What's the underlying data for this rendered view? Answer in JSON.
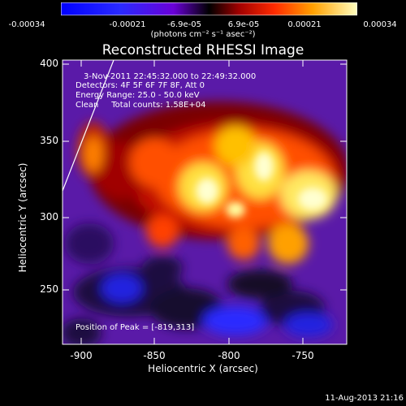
{
  "colorbar": {
    "ticks": [
      "-0.00034",
      "-0.00021",
      "-6.9e-05",
      "6.9e-05",
      "0.00021",
      "0.00034"
    ],
    "unit": "(photons cm⁻² s⁻¹ asec⁻²)"
  },
  "title": "Reconstructed RHESSI Image",
  "info": {
    "line1": "3-Nov-2011 22:45:32.000 to 22:49:32.000",
    "line2": "Detectors: 4F 5F 6F 7F 8F, Att 0",
    "line3": "Energy Range: 25.0 - 50.0 keV",
    "line4": "Clean     Total counts: 1.58E+04",
    "peak": "Position of Peak = [-819,313]"
  },
  "axes": {
    "xlabel": "Heliocentric X (arcsec)",
    "ylabel": "Heliocentric Y (arcsec)",
    "xticks": [
      "-900",
      "-850",
      "-800",
      "-750"
    ],
    "yticks": [
      "400",
      "350",
      "300",
      "250"
    ]
  },
  "footer": "11-Aug-2013 21:16",
  "colors": {
    "background": "#000000",
    "limb": "#ffffff"
  }
}
